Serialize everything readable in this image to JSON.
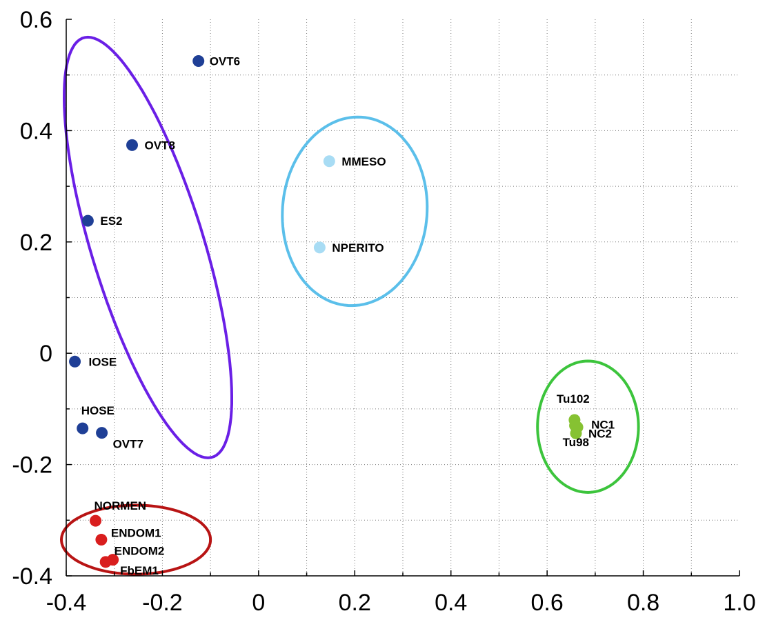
{
  "chart_data": {
    "type": "scatter",
    "title": "",
    "xlabel": "",
    "ylabel": "",
    "xlim": [
      -0.4,
      1.0
    ],
    "ylim": [
      -0.4,
      0.6
    ],
    "grid": true,
    "x_ticks": [
      -0.4,
      -0.2,
      0,
      0.2,
      0.4,
      0.6,
      0.8,
      1.0
    ],
    "x_tick_labels": [
      "-0.4",
      "-0.2",
      "0",
      "0.2",
      "0.4",
      "0.6",
      "0.8",
      "1.0"
    ],
    "y_ticks": [
      -0.4,
      -0.2,
      0,
      0.2,
      0.4,
      0.6
    ],
    "y_tick_labels": [
      "-0.4",
      "-0.2",
      "0",
      "0.2",
      "0.4",
      "0.6"
    ],
    "x_minor_ticks": [
      -0.3,
      -0.1,
      0.1,
      0.3,
      0.5,
      0.7,
      0.9
    ],
    "y_minor_ticks": [
      -0.3,
      -0.1,
      0.1,
      0.3,
      0.5
    ],
    "groups": [
      {
        "color": "#1f3f96",
        "points": [
          {
            "label": "OVT6",
            "x": -0.125,
            "y": 0.525
          },
          {
            "label": "OVT8",
            "x": -0.263,
            "y": 0.374
          },
          {
            "label": "ES2",
            "x": -0.355,
            "y": 0.238
          },
          {
            "label": "IOSE",
            "x": -0.382,
            "y": -0.015
          },
          {
            "label": "HOSE",
            "x": -0.366,
            "y": -0.135
          },
          {
            "label": "OVT7",
            "x": -0.326,
            "y": -0.143
          }
        ]
      },
      {
        "color": "#a8dcf4",
        "points": [
          {
            "label": "MMESO",
            "x": 0.147,
            "y": 0.345
          },
          {
            "label": "NPERITO",
            "x": 0.127,
            "y": 0.19
          }
        ]
      },
      {
        "color": "#86c232",
        "points": [
          {
            "label": "Tu102",
            "x": 0.657,
            "y": -0.12
          },
          {
            "label": "NC1",
            "x": 0.663,
            "y": -0.133
          },
          {
            "label": "NC2",
            "x": 0.66,
            "y": -0.144
          },
          {
            "label": "Tu98",
            "x": 0.658,
            "y": -0.13
          }
        ]
      },
      {
        "color": "#d91e1e",
        "points": [
          {
            "label": "NORMEN",
            "x": -0.339,
            "y": -0.301
          },
          {
            "label": "ENDOM1",
            "x": -0.327,
            "y": -0.335
          },
          {
            "label": "ENDOM2",
            "x": -0.303,
            "y": -0.371
          },
          {
            "label": "FbEM1",
            "x": -0.318,
            "y": -0.375
          }
        ]
      }
    ],
    "clusters": [
      {
        "color": "#6a1fe6",
        "cx": -0.23,
        "cy": 0.19,
        "rx": 0.4,
        "ry": 0.115,
        "rotation_deg": -70
      },
      {
        "color": "#5bbfea",
        "cx": 0.2,
        "cy": 0.255,
        "rx": 0.15,
        "ry": 0.17,
        "rotation_deg": -10
      },
      {
        "color": "#3cc43c",
        "cx": 0.685,
        "cy": -0.132,
        "rx": 0.105,
        "ry": 0.118,
        "rotation_deg": 0
      },
      {
        "color": "#b81414",
        "cx": -0.255,
        "cy": -0.335,
        "rx": 0.155,
        "ry": 0.062,
        "rotation_deg": 0
      }
    ]
  }
}
